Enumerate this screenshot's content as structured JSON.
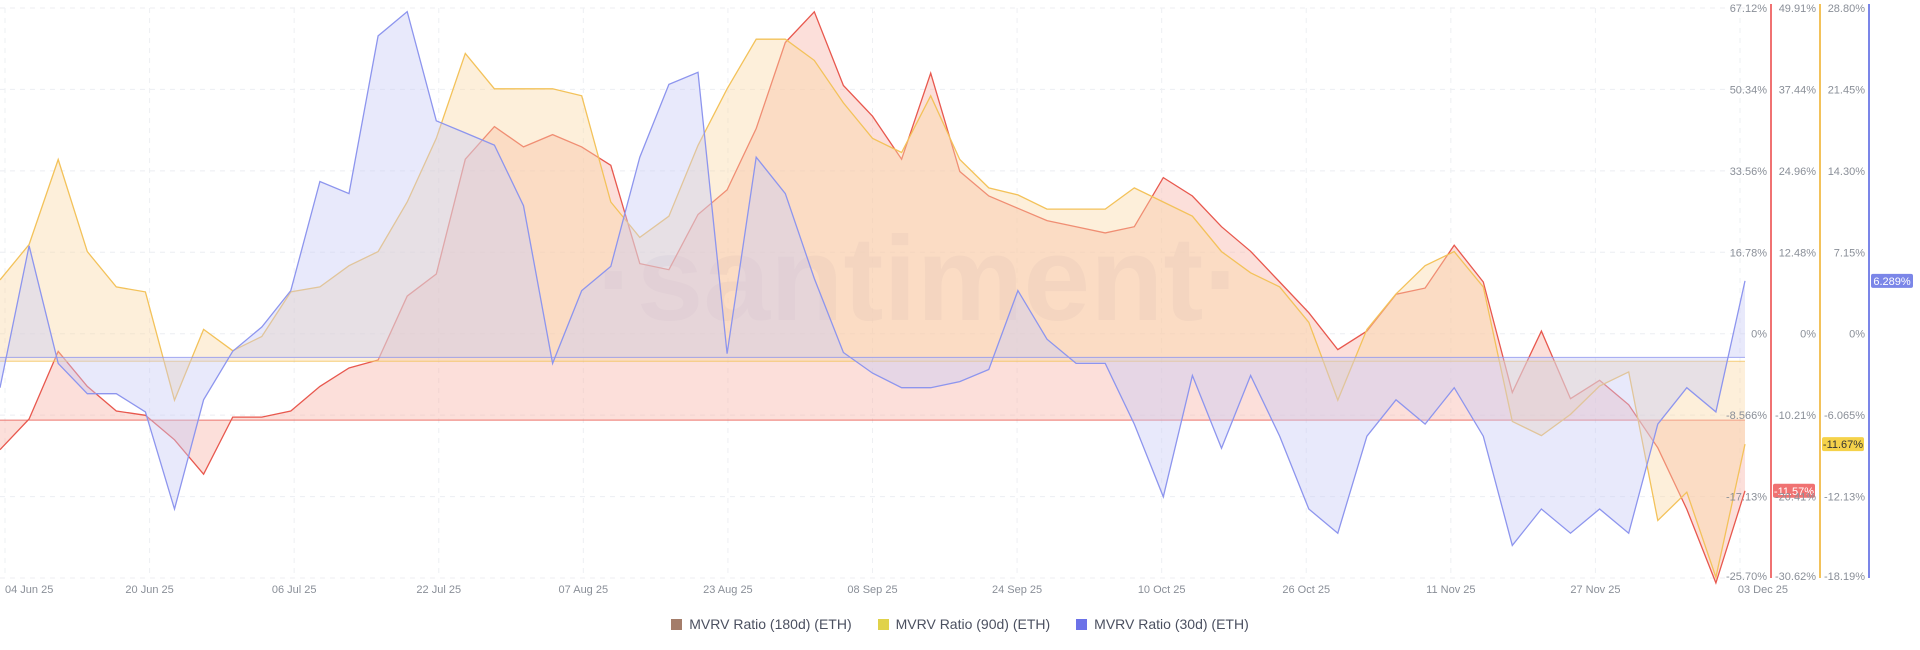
{
  "chart_data": {
    "type": "area",
    "watermark": "·santiment·",
    "x_ticks": [
      "04 Jun 25",
      "20 Jun 25",
      "06 Jul 25",
      "22 Jul 25",
      "07 Aug 25",
      "23 Aug 25",
      "08 Sep 25",
      "24 Sep 25",
      "10 Oct 25",
      "26 Oct 25",
      "11 Nov 25",
      "27 Nov 25",
      "03 Dec 25"
    ],
    "y_axes": [
      {
        "name": "MVRV Ratio (180d) (ETH)",
        "color": "#f07272",
        "range": [
          -25.7,
          67.12
        ],
        "ticks": [
          "67.12%",
          "50.34%",
          "33.56%",
          "16.78%",
          "0%",
          "-8.566%",
          "-17.13%",
          "-25.70%"
        ],
        "current_label": "-11.57%"
      },
      {
        "name": "MVRV Ratio (90d) (ETH)",
        "color": "#f3c25a",
        "range": [
          -30.62,
          49.91
        ],
        "ticks": [
          "49.91%",
          "37.44%",
          "24.96%",
          "12.48%",
          "0%",
          "-10.21%",
          "-20.41%",
          "-30.62%"
        ],
        "current_label": "-11.67%"
      },
      {
        "name": "MVRV Ratio (30d) (ETH)",
        "color": "#7b86e8",
        "range": [
          -18.19,
          28.8
        ],
        "ticks": [
          "28.80%",
          "21.45%",
          "14.30%",
          "7.15%",
          "0%",
          "-6.065%",
          "-12.13%",
          "-18.19%"
        ],
        "current_label": "6.289%"
      }
    ],
    "series": [
      {
        "name": "MVRV Ratio (180d) (ETH)",
        "legend_color": "#a47d6a",
        "line_color": "#e8584e",
        "fill_color": "#f7b2a8",
        "x": [
          0,
          3,
          6,
          9,
          12,
          15,
          18,
          21,
          24,
          27,
          30,
          33,
          36,
          39,
          42,
          45,
          48,
          51,
          54,
          57,
          60,
          63,
          66,
          69,
          72,
          75,
          78,
          81,
          84,
          87,
          90,
          93,
          96,
          99,
          102,
          105,
          108,
          111,
          114,
          117,
          120,
          123,
          126,
          129,
          132,
          135,
          138,
          141,
          144,
          147,
          150,
          153,
          156,
          159,
          162,
          165,
          168,
          171,
          174,
          177,
          180
        ],
        "values": [
          -4.8,
          0.2,
          11.2,
          5.5,
          1.5,
          0.8,
          -3.2,
          -8.8,
          0.5,
          0.5,
          1.5,
          5.5,
          8.5,
          9.8,
          20.2,
          23.8,
          42.5,
          47.8,
          44.5,
          46.5,
          44.5,
          41.5,
          25.5,
          24.5,
          33.5,
          37.5,
          47.5,
          61.5,
          66.5,
          54.5,
          49.5,
          42.5,
          56.5,
          40.5,
          36.5,
          34.5,
          32.5,
          31.5,
          30.5,
          31.5,
          39.5,
          36.5,
          31.5,
          27.5,
          22.5,
          17.5,
          11.5,
          14.5,
          20.5,
          21.5,
          28.5,
          22.5,
          4.5,
          14.5,
          3.5,
          6.5,
          2.5,
          -4.5,
          -14.5,
          -26.5,
          -11.5
        ]
      },
      {
        "name": "MVRV Ratio (90d) (ETH)",
        "legend_color": "#e0d24a",
        "line_color": "#f3c25a",
        "fill_color": "#fbd9a6",
        "x": [
          0,
          3,
          6,
          9,
          12,
          15,
          18,
          21,
          24,
          27,
          30,
          33,
          36,
          39,
          42,
          45,
          48,
          51,
          54,
          57,
          60,
          63,
          66,
          69,
          72,
          75,
          78,
          81,
          84,
          87,
          90,
          93,
          96,
          99,
          102,
          105,
          108,
          111,
          114,
          117,
          120,
          123,
          126,
          129,
          132,
          135,
          138,
          141,
          144,
          147,
          150,
          153,
          156,
          159,
          162,
          165,
          168,
          171,
          174,
          177,
          180
        ],
        "values": [
          11.5,
          16.5,
          28.5,
          15.5,
          10.5,
          9.8,
          -5.5,
          4.5,
          1.5,
          3.5,
          9.8,
          10.5,
          13.5,
          15.5,
          22.5,
          31.5,
          43.5,
          38.5,
          38.5,
          38.5,
          37.5,
          22.5,
          17.5,
          20.5,
          30.5,
          38.5,
          45.5,
          45.5,
          42.5,
          36.5,
          31.5,
          29.5,
          37.5,
          28.5,
          24.5,
          23.5,
          21.5,
          21.5,
          21.5,
          24.5,
          22.5,
          20.5,
          15.5,
          12.5,
          10.5,
          5.5,
          -5.5,
          4.5,
          9.5,
          13.5,
          15.5,
          10.5,
          -8.5,
          -10.5,
          -7.5,
          -3.5,
          -1.5,
          -22.5,
          -18.5,
          -30.5,
          -11.7
        ]
      },
      {
        "name": "MVRV Ratio (30d) (ETH)",
        "legend_color": "#6c72e8",
        "line_color": "#8d95ee",
        "fill_color": "#c7caf5",
        "x": [
          0,
          3,
          6,
          9,
          12,
          15,
          18,
          21,
          24,
          27,
          30,
          33,
          36,
          39,
          42,
          45,
          48,
          51,
          54,
          57,
          60,
          63,
          66,
          69,
          72,
          75,
          78,
          81,
          84,
          87,
          90,
          93,
          96,
          99,
          102,
          105,
          108,
          111,
          114,
          117,
          120,
          123,
          126,
          129,
          132,
          135,
          138,
          141,
          144,
          147,
          150,
          153,
          156,
          159,
          162,
          165,
          168,
          171,
          174,
          177,
          180
        ],
        "values": [
          -2.5,
          9.2,
          -0.5,
          -3.0,
          -3.0,
          -4.5,
          -12.5,
          -3.5,
          0.5,
          2.5,
          5.5,
          14.5,
          13.5,
          26.5,
          28.5,
          19.5,
          18.5,
          17.5,
          12.5,
          -0.5,
          5.5,
          7.5,
          16.5,
          22.5,
          23.5,
          0.3,
          16.5,
          13.5,
          6.5,
          0.4,
          -1.3,
          -2.5,
          -2.5,
          -2.0,
          -1.0,
          5.5,
          1.5,
          -0.5,
          -0.5,
          -5.5,
          -11.5,
          -1.5,
          -7.5,
          -1.5,
          -6.5,
          -12.5,
          -14.5,
          -6.5,
          -3.5,
          -5.5,
          -2.5,
          -6.5,
          -15.5,
          -12.5,
          -14.5,
          -12.5,
          -14.5,
          -5.5,
          -2.5,
          -4.5,
          6.3
        ]
      }
    ]
  }
}
